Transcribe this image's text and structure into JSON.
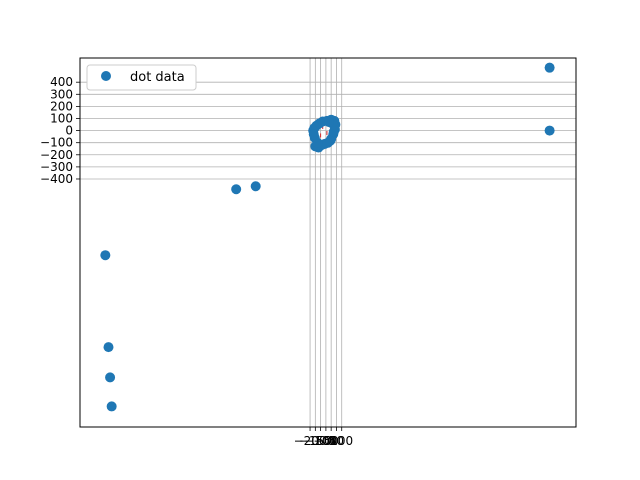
{
  "chart_data": {
    "type": "scatter",
    "title": "",
    "xlabel": "",
    "ylabel": "",
    "grid": true,
    "legend": {
      "placement": "upper-left",
      "entries": [
        "dot data"
      ]
    },
    "colors": {
      "points": "#1f77b4",
      "tiny_marks": "#d62728",
      "grid": "#b0b0b0",
      "axes": "#000000"
    },
    "xlim": [
      -2380,
      2320
    ],
    "ylim": [
      -2450,
      600
    ],
    "x_ticks": [
      -200,
      -150,
      -100,
      -50,
      0,
      50,
      100
    ],
    "x_tick_labels": [
      "−200",
      "−150",
      "−100",
      "−50",
      "0",
      "50",
      "100"
    ],
    "y_ticks": [
      400,
      300,
      200,
      100,
      0,
      -100,
      -200,
      -300,
      -400
    ],
    "y_tick_labels": [
      "400",
      "300",
      "200",
      "100",
      "0",
      "−100",
      "−200",
      "−300",
      "−400"
    ],
    "series": [
      {
        "name": "dot data",
        "points": [
          {
            "x": 2070,
            "y": 520
          },
          {
            "x": 2070,
            "y": 0
          },
          {
            "x": -715,
            "y": -460
          },
          {
            "x": -900,
            "y": -485
          },
          {
            "x": -2140,
            "y": -1030
          },
          {
            "x": -2110,
            "y": -1790
          },
          {
            "x": -2095,
            "y": -2040
          },
          {
            "x": -2080,
            "y": -2280
          },
          {
            "x": -150,
            "y": -130
          },
          {
            "x": -120,
            "y": -140
          },
          {
            "x": -170,
            "y": 0
          },
          {
            "x": -160,
            "y": 20
          },
          {
            "x": -140,
            "y": 40
          },
          {
            "x": -110,
            "y": 60
          },
          {
            "x": -80,
            "y": 75
          },
          {
            "x": -40,
            "y": 80
          },
          {
            "x": 0,
            "y": 90
          },
          {
            "x": 30,
            "y": 80
          },
          {
            "x": 40,
            "y": 50
          },
          {
            "x": 35,
            "y": 10
          },
          {
            "x": 20,
            "y": -30
          },
          {
            "x": 0,
            "y": -70
          },
          {
            "x": -30,
            "y": -100
          },
          {
            "x": -60,
            "y": -110
          },
          {
            "x": -90,
            "y": -120
          },
          {
            "x": -130,
            "y": -100
          },
          {
            "x": -155,
            "y": -60
          },
          {
            "x": -165,
            "y": -30
          },
          {
            "x": 10,
            "y": 60
          },
          {
            "x": -20,
            "y": 70
          },
          {
            "x": 25,
            "y": -10
          },
          {
            "x": -10,
            "y": -85
          }
        ]
      }
    ]
  }
}
